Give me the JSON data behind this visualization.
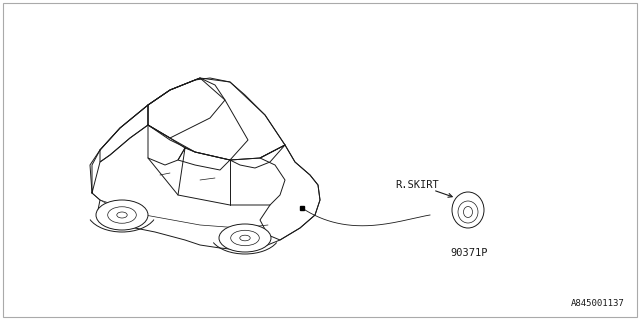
{
  "bg_color": "#ffffff",
  "border_color": "#aaaaaa",
  "line_color": "#1a1a1a",
  "text_color": "#1a1a1a",
  "diagram_id": "A845001137",
  "part_label": "R.SKIRT",
  "part_number": "90371P",
  "font_size_label": 7.5,
  "font_size_partnum": 7.5,
  "font_size_id": 6.5,
  "lw_main": 0.7,
  "lw_thin": 0.5
}
